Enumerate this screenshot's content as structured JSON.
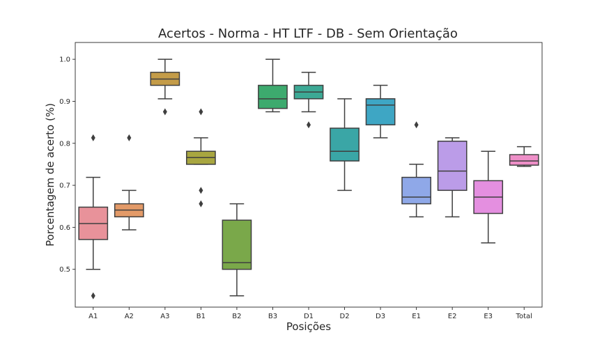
{
  "chart_data": {
    "type": "box",
    "title": "Acertos -  Norma - HT LTF - DB - Sem Orientação",
    "xlabel": "Posições",
    "ylabel": "Porcentagem de acerto (%)",
    "ylim": [
      0.41,
      1.04
    ],
    "yticks": [
      "0.5",
      "0.6",
      "0.7",
      "0.8",
      "0.9",
      "1.0"
    ],
    "grid": false,
    "legend": "none",
    "categories": [
      "A1",
      "A2",
      "A3",
      "B1",
      "B2",
      "B3",
      "D1",
      "D2",
      "D3",
      "E1",
      "E2",
      "E3",
      "Total"
    ],
    "boxes": [
      {
        "category": "A1",
        "whisker_low": 0.5,
        "q1": 0.571,
        "median": 0.609,
        "q3": 0.648,
        "whisker_high": 0.719,
        "outliers": [
          0.813,
          0.437
        ],
        "color": "#e8929a"
      },
      {
        "category": "A2",
        "whisker_low": 0.594,
        "q1": 0.625,
        "median": 0.641,
        "q3": 0.656,
        "whisker_high": 0.688,
        "outliers": [
          0.813
        ],
        "color": "#e39a68"
      },
      {
        "category": "A3",
        "whisker_low": 0.906,
        "q1": 0.938,
        "median": 0.953,
        "q3": 0.969,
        "whisker_high": 1.0,
        "outliers": [
          0.875
        ],
        "color": "#c49c48"
      },
      {
        "category": "B1",
        "whisker_low": 0.75,
        "q1": 0.75,
        "median": 0.766,
        "q3": 0.781,
        "whisker_high": 0.813,
        "outliers": [
          0.875,
          0.688,
          0.656
        ],
        "color": "#a8a640"
      },
      {
        "category": "B2",
        "whisker_low": 0.437,
        "q1": 0.5,
        "median": 0.516,
        "q3": 0.617,
        "whisker_high": 0.656,
        "outliers": [],
        "color": "#7aa84a"
      },
      {
        "category": "B3",
        "whisker_low": 0.875,
        "q1": 0.883,
        "median": 0.906,
        "q3": 0.938,
        "whisker_high": 1.0,
        "outliers": [],
        "color": "#3daa6e"
      },
      {
        "category": "D1",
        "whisker_low": 0.875,
        "q1": 0.906,
        "median": 0.922,
        "q3": 0.938,
        "whisker_high": 0.969,
        "outliers": [
          0.844
        ],
        "color": "#3ca995"
      },
      {
        "category": "D2",
        "whisker_low": 0.688,
        "q1": 0.758,
        "median": 0.781,
        "q3": 0.836,
        "whisker_high": 0.906,
        "outliers": [],
        "color": "#3aa6a6"
      },
      {
        "category": "D3",
        "whisker_low": 0.813,
        "q1": 0.844,
        "median": 0.891,
        "q3": 0.906,
        "whisker_high": 0.938,
        "outliers": [],
        "color": "#3ea6c4"
      },
      {
        "category": "E1",
        "whisker_low": 0.625,
        "q1": 0.656,
        "median": 0.672,
        "q3": 0.719,
        "whisker_high": 0.75,
        "outliers": [
          0.844
        ],
        "color": "#8fa8e8"
      },
      {
        "category": "E2",
        "whisker_low": 0.625,
        "q1": 0.688,
        "median": 0.734,
        "q3": 0.805,
        "whisker_high": 0.813,
        "outliers": [],
        "color": "#bb9ce8"
      },
      {
        "category": "E3",
        "whisker_low": 0.563,
        "q1": 0.633,
        "median": 0.672,
        "q3": 0.711,
        "whisker_high": 0.781,
        "outliers": [],
        "color": "#e48fe0"
      },
      {
        "category": "Total",
        "whisker_low": 0.745,
        "q1": 0.748,
        "median": 0.758,
        "q3": 0.773,
        "whisker_high": 0.792,
        "outliers": [],
        "color": "#ee8fc8"
      }
    ]
  }
}
